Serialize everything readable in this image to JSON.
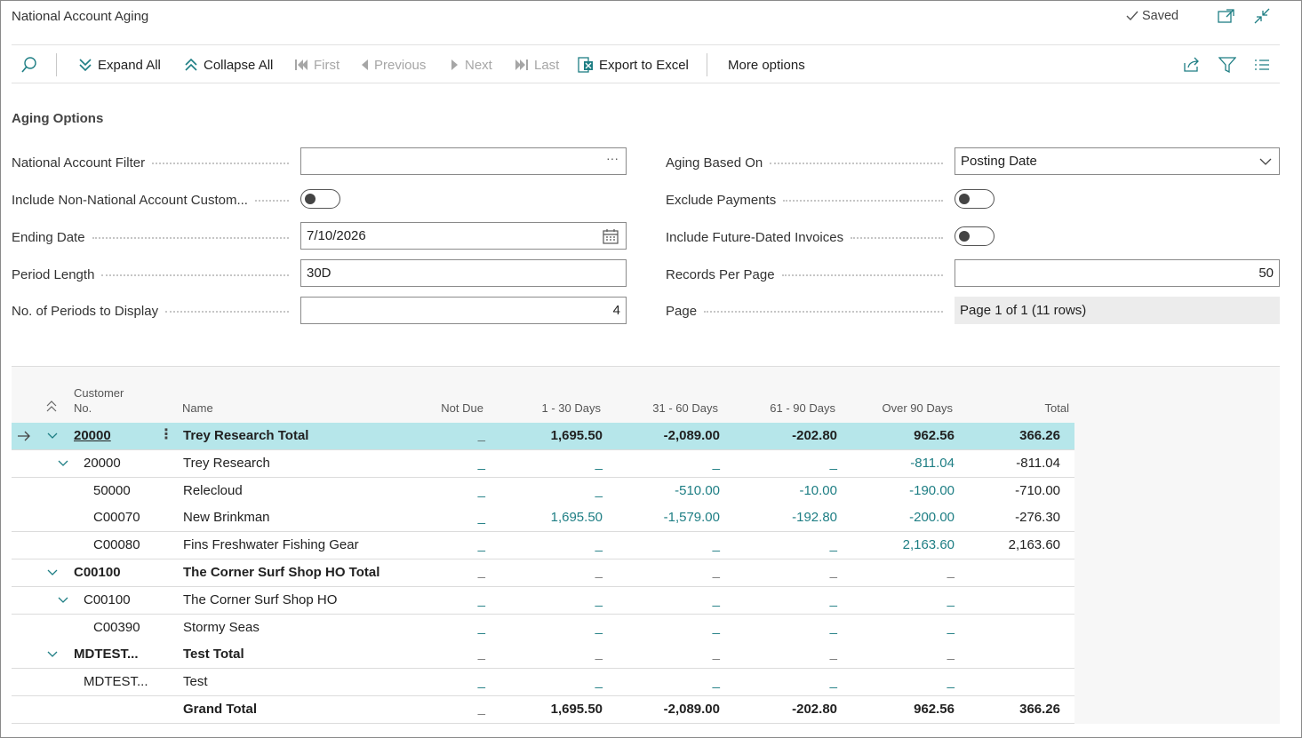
{
  "window": {
    "title": "National Account Aging",
    "saved_label": "Saved"
  },
  "actions": {
    "expand_all": "Expand All",
    "collapse_all": "Collapse All",
    "first": "First",
    "previous": "Previous",
    "next": "Next",
    "last": "Last",
    "export": "Export to Excel",
    "more": "More options"
  },
  "options": {
    "section_title": "Aging Options",
    "national_account_filter": {
      "label": "National Account Filter",
      "value": ""
    },
    "include_non_national": {
      "label": "Include Non-National Account Custom...",
      "on": false
    },
    "ending_date": {
      "label": "Ending Date",
      "value": "7/10/2026"
    },
    "period_length": {
      "label": "Period Length",
      "value": "30D"
    },
    "periods_to_display": {
      "label": "No. of Periods to Display",
      "value": "4"
    },
    "aging_based_on": {
      "label": "Aging Based On",
      "value": "Posting Date"
    },
    "exclude_payments": {
      "label": "Exclude Payments",
      "on": false
    },
    "include_future": {
      "label": "Include Future-Dated Invoices",
      "on": false
    },
    "records_per_page": {
      "label": "Records Per Page",
      "value": "50"
    },
    "page": {
      "label": "Page",
      "value": "Page 1 of 1 (11 rows)"
    }
  },
  "grid": {
    "headers": {
      "customer_no_1": "Customer",
      "customer_no_2": "No.",
      "name": "Name",
      "not_due": "Not Due",
      "d1_30": "1 - 30 Days",
      "d31_60": "31 - 60 Days",
      "d61_90": "61 - 90 Days",
      "over90": "Over 90 Days",
      "total": "Total"
    },
    "rows": [
      {
        "no": "20000",
        "name": "Trey Research Total",
        "not_due": "_",
        "d1": "1,695.50",
        "d2": "-2,089.00",
        "d3": "-202.80",
        "d4": "962.56",
        "total": "366.26"
      },
      {
        "no": "20000",
        "name": "Trey Research",
        "not_due": "_",
        "d1": "_",
        "d2": "_",
        "d3": "_",
        "d4": "-811.04",
        "total": "-811.04"
      },
      {
        "no": "50000",
        "name": "Relecloud",
        "not_due": "_",
        "d1": "_",
        "d2": "-510.00",
        "d3": "-10.00",
        "d4": "-190.00",
        "total": "-710.00"
      },
      {
        "no": "C00070",
        "name": "New Brinkman",
        "not_due": "_",
        "d1": "1,695.50",
        "d2": "-1,579.00",
        "d3": "-192.80",
        "d4": "-200.00",
        "total": "-276.30"
      },
      {
        "no": "C00080",
        "name": "Fins Freshwater Fishing Gear",
        "not_due": "_",
        "d1": "_",
        "d2": "_",
        "d3": "_",
        "d4": "2,163.60",
        "total": "2,163.60"
      },
      {
        "no": "C00100",
        "name": "The Corner Surf Shop HO Total",
        "not_due": "_",
        "d1": "_",
        "d2": "_",
        "d3": "_",
        "d4": "_",
        "total": ""
      },
      {
        "no": "C00100",
        "name": "The Corner Surf Shop HO",
        "not_due": "_",
        "d1": "_",
        "d2": "_",
        "d3": "_",
        "d4": "_",
        "total": ""
      },
      {
        "no": "C00390",
        "name": "Stormy Seas",
        "not_due": "_",
        "d1": "_",
        "d2": "_",
        "d3": "_",
        "d4": "_",
        "total": ""
      },
      {
        "no": "MDTEST...",
        "name": "Test Total",
        "not_due": "_",
        "d1": "_",
        "d2": "_",
        "d3": "_",
        "d4": "_",
        "total": ""
      },
      {
        "no": "MDTEST...",
        "name": "Test",
        "not_due": "_",
        "d1": "_",
        "d2": "_",
        "d3": "_",
        "d4": "_",
        "total": ""
      },
      {
        "no": "",
        "name": "Grand Total",
        "not_due": "_",
        "d1": "1,695.50",
        "d2": "-2,089.00",
        "d3": "-202.80",
        "d4": "962.56",
        "total": "366.26"
      }
    ]
  },
  "colors": {
    "accent": "#1e7e84",
    "selected_row": "#b6e6ea"
  }
}
